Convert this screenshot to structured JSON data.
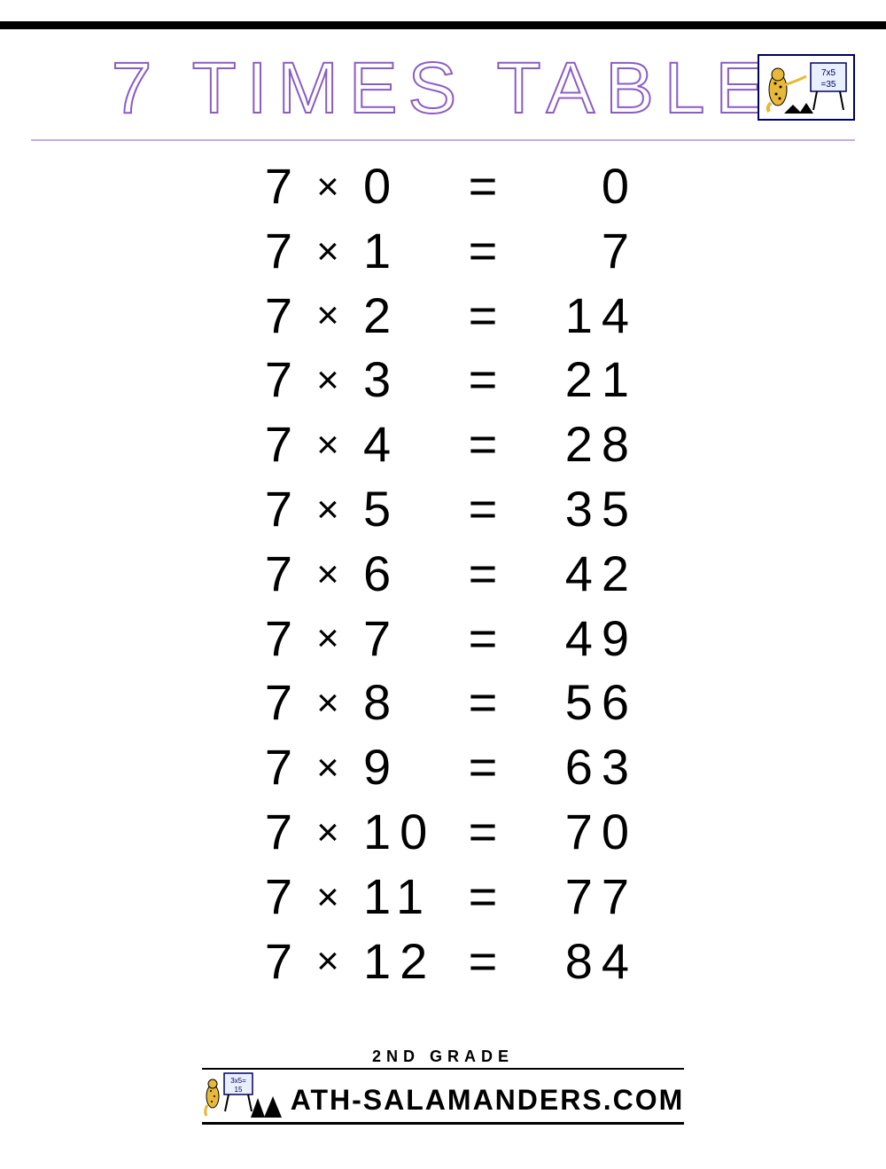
{
  "title": "7 TIMES TABLE",
  "title_color": "#8b5cc6",
  "title_fontsize": 82,
  "title_letterspacing": 12,
  "underline_color": "#8b5cc6",
  "background_color": "#ffffff",
  "text_color": "#000000",
  "table": {
    "type": "multiplication-table",
    "fontsize": 56,
    "letterspacing": 10,
    "times_sign": "×",
    "equals_sign": "=",
    "rows": [
      {
        "multiplicand": "7",
        "multiplier": "0",
        "product": "0"
      },
      {
        "multiplicand": "7",
        "multiplier": "1",
        "product": "7"
      },
      {
        "multiplicand": "7",
        "multiplier": "2",
        "product": "14"
      },
      {
        "multiplicand": "7",
        "multiplier": "3",
        "product": "21"
      },
      {
        "multiplicand": "7",
        "multiplier": "4",
        "product": "28"
      },
      {
        "multiplicand": "7",
        "multiplier": "5",
        "product": "35"
      },
      {
        "multiplicand": "7",
        "multiplier": "6",
        "product": "42"
      },
      {
        "multiplicand": "7",
        "multiplier": "7",
        "product": "49"
      },
      {
        "multiplicand": "7",
        "multiplier": "8",
        "product": "56"
      },
      {
        "multiplicand": "7",
        "multiplier": "9",
        "product": "63"
      },
      {
        "multiplicand": "7",
        "multiplier": "10",
        "product": "70"
      },
      {
        "multiplicand": "7",
        "multiplier": "11",
        "product": "77"
      },
      {
        "multiplicand": "7",
        "multiplier": "12",
        "product": "84"
      }
    ]
  },
  "logo": {
    "board_text_line1": "7x5",
    "board_text_line2": "=35",
    "salamander_color": "#e8b838",
    "salamander_spot_color": "#000000",
    "board_border_color": "#000060",
    "board_bg_color": "#e8f0ff"
  },
  "footer": {
    "grade_label": "2ND GRADE",
    "brand_name": "ATH-SALAMANDERS.COM",
    "logo_board_text_line1": "3x5=",
    "logo_board_text_line2": "15",
    "salamander_color": "#e8b838"
  }
}
